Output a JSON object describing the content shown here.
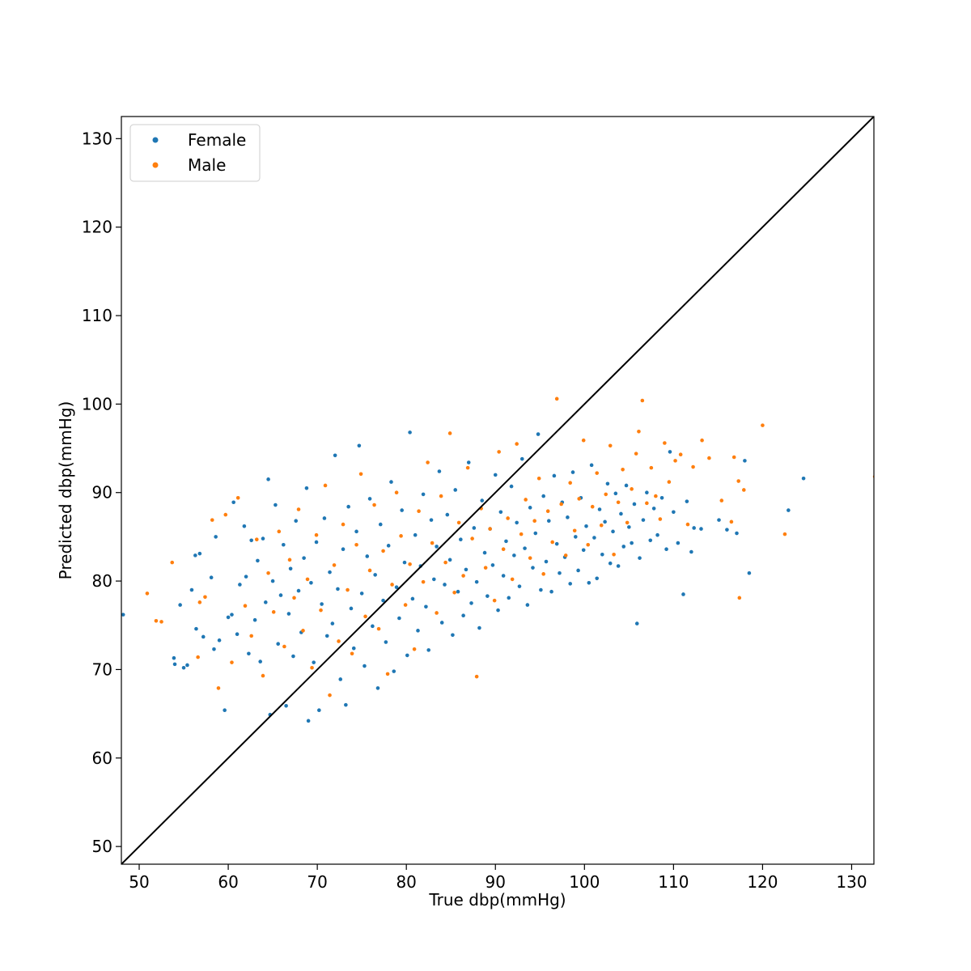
{
  "chart_data": {
    "type": "scatter",
    "title": "",
    "xlabel": "True dbp(mmHg)",
    "ylabel": "Predicted dbp(mmHg)",
    "xlim": [
      48,
      132.5
    ],
    "ylim": [
      48,
      132.5
    ],
    "xticks": [
      50,
      60,
      70,
      80,
      90,
      100,
      110,
      120,
      130
    ],
    "yticks": [
      50,
      60,
      70,
      80,
      90,
      100,
      110,
      120,
      130
    ],
    "grid": false,
    "legend_position": "top-left",
    "reference_line": {
      "type": "identity",
      "color": "#000000"
    },
    "series": [
      {
        "name": "Female",
        "color": "#1f77b4",
        "points": [
          [
            48.2,
            76.2
          ],
          [
            53.9,
            71.3
          ],
          [
            54.0,
            70.6
          ],
          [
            54.6,
            77.3
          ],
          [
            55.0,
            70.2
          ],
          [
            55.4,
            70.5
          ],
          [
            55.9,
            79.0
          ],
          [
            56.3,
            82.9
          ],
          [
            56.4,
            74.6
          ],
          [
            56.8,
            83.1
          ],
          [
            57.2,
            73.7
          ],
          [
            58.1,
            80.4
          ],
          [
            58.4,
            72.3
          ],
          [
            58.6,
            85.0
          ],
          [
            59.0,
            73.3
          ],
          [
            59.6,
            65.4
          ],
          [
            60.0,
            75.9
          ],
          [
            60.4,
            76.2
          ],
          [
            60.6,
            88.9
          ],
          [
            61.0,
            74.0
          ],
          [
            61.3,
            79.6
          ],
          [
            61.8,
            86.2
          ],
          [
            62.0,
            80.5
          ],
          [
            62.3,
            71.8
          ],
          [
            62.6,
            84.6
          ],
          [
            63.0,
            75.6
          ],
          [
            63.3,
            82.3
          ],
          [
            63.6,
            70.9
          ],
          [
            63.9,
            84.8
          ],
          [
            64.2,
            77.6
          ],
          [
            64.5,
            91.5
          ],
          [
            64.7,
            64.9
          ],
          [
            65.0,
            80.0
          ],
          [
            65.3,
            88.6
          ],
          [
            65.6,
            72.9
          ],
          [
            65.9,
            78.4
          ],
          [
            66.2,
            84.1
          ],
          [
            66.5,
            65.9
          ],
          [
            66.8,
            76.3
          ],
          [
            67.0,
            81.4
          ],
          [
            67.3,
            71.5
          ],
          [
            67.6,
            86.8
          ],
          [
            67.9,
            78.9
          ],
          [
            68.2,
            74.2
          ],
          [
            68.5,
            82.6
          ],
          [
            68.8,
            90.5
          ],
          [
            69.0,
            64.2
          ],
          [
            69.3,
            79.8
          ],
          [
            69.6,
            70.8
          ],
          [
            69.9,
            84.4
          ],
          [
            70.2,
            65.4
          ],
          [
            70.5,
            77.4
          ],
          [
            70.8,
            87.1
          ],
          [
            71.1,
            73.8
          ],
          [
            71.4,
            81.0
          ],
          [
            71.7,
            75.2
          ],
          [
            72.0,
            94.2
          ],
          [
            72.3,
            79.1
          ],
          [
            72.6,
            68.9
          ],
          [
            72.9,
            83.6
          ],
          [
            73.2,
            66.0
          ],
          [
            73.5,
            88.4
          ],
          [
            73.8,
            76.9
          ],
          [
            74.1,
            72.4
          ],
          [
            74.4,
            85.6
          ],
          [
            74.7,
            95.3
          ],
          [
            75.0,
            78.6
          ],
          [
            75.3,
            70.4
          ],
          [
            75.6,
            82.8
          ],
          [
            75.9,
            89.3
          ],
          [
            76.2,
            74.9
          ],
          [
            76.5,
            80.7
          ],
          [
            76.8,
            67.9
          ],
          [
            77.1,
            86.4
          ],
          [
            77.4,
            77.8
          ],
          [
            77.7,
            73.1
          ],
          [
            78.0,
            84.0
          ],
          [
            78.3,
            91.2
          ],
          [
            78.6,
            69.8
          ],
          [
            78.9,
            79.3
          ],
          [
            79.2,
            75.8
          ],
          [
            79.5,
            88.0
          ],
          [
            79.8,
            82.1
          ],
          [
            80.1,
            71.6
          ],
          [
            80.4,
            96.8
          ],
          [
            80.7,
            78.0
          ],
          [
            81.0,
            85.2
          ],
          [
            81.3,
            74.4
          ],
          [
            81.6,
            81.7
          ],
          [
            81.9,
            89.8
          ],
          [
            82.2,
            77.1
          ],
          [
            82.5,
            72.2
          ],
          [
            82.8,
            86.9
          ],
          [
            83.1,
            80.2
          ],
          [
            83.4,
            83.9
          ],
          [
            83.7,
            92.4
          ],
          [
            84.0,
            75.3
          ],
          [
            84.3,
            79.6
          ],
          [
            84.6,
            87.5
          ],
          [
            84.9,
            82.4
          ],
          [
            85.2,
            73.9
          ],
          [
            85.5,
            90.3
          ],
          [
            85.8,
            78.8
          ],
          [
            86.1,
            84.7
          ],
          [
            86.4,
            76.1
          ],
          [
            86.7,
            81.3
          ],
          [
            87.0,
            93.4
          ],
          [
            87.3,
            77.5
          ],
          [
            87.6,
            86.0
          ],
          [
            87.9,
            79.9
          ],
          [
            88.2,
            74.7
          ],
          [
            88.5,
            89.1
          ],
          [
            88.8,
            83.2
          ],
          [
            89.1,
            78.3
          ],
          [
            89.4,
            85.9
          ],
          [
            89.7,
            81.8
          ],
          [
            90.0,
            92.0
          ],
          [
            90.3,
            76.7
          ],
          [
            90.6,
            87.8
          ],
          [
            90.9,
            80.6
          ],
          [
            91.2,
            84.5
          ],
          [
            91.5,
            78.1
          ],
          [
            91.8,
            90.7
          ],
          [
            92.1,
            82.9
          ],
          [
            92.4,
            86.6
          ],
          [
            92.7,
            79.4
          ],
          [
            93.0,
            93.8
          ],
          [
            93.3,
            83.7
          ],
          [
            93.6,
            77.3
          ],
          [
            93.9,
            88.3
          ],
          [
            94.2,
            81.5
          ],
          [
            94.5,
            85.4
          ],
          [
            94.8,
            96.6
          ],
          [
            95.1,
            79.0
          ],
          [
            95.4,
            89.6
          ],
          [
            95.7,
            82.2
          ],
          [
            96.0,
            86.8
          ],
          [
            96.3,
            78.8
          ],
          [
            96.6,
            91.9
          ],
          [
            96.9,
            84.2
          ],
          [
            97.2,
            80.9
          ],
          [
            97.5,
            88.9
          ],
          [
            97.8,
            82.7
          ],
          [
            98.1,
            87.2
          ],
          [
            98.4,
            79.7
          ],
          [
            98.7,
            92.3
          ],
          [
            99.0,
            85.0
          ],
          [
            99.3,
            81.2
          ],
          [
            99.6,
            89.4
          ],
          [
            99.9,
            83.5
          ],
          [
            100.2,
            86.2
          ],
          [
            100.5,
            79.8
          ],
          [
            100.8,
            93.1
          ],
          [
            101.1,
            84.9
          ],
          [
            101.4,
            80.3
          ],
          [
            101.7,
            88.1
          ],
          [
            102.0,
            83.0
          ],
          [
            102.3,
            86.7
          ],
          [
            102.6,
            91.0
          ],
          [
            102.9,
            82.0
          ],
          [
            103.2,
            85.6
          ],
          [
            103.5,
            89.9
          ],
          [
            103.8,
            81.7
          ],
          [
            104.1,
            87.6
          ],
          [
            104.4,
            83.9
          ],
          [
            104.7,
            90.8
          ],
          [
            105.0,
            86.1
          ],
          [
            105.3,
            84.3
          ],
          [
            105.6,
            88.7
          ],
          [
            105.9,
            75.2
          ],
          [
            106.2,
            82.6
          ],
          [
            106.6,
            86.9
          ],
          [
            107.0,
            90.0
          ],
          [
            107.4,
            84.6
          ],
          [
            107.8,
            88.2
          ],
          [
            108.2,
            85.2
          ],
          [
            108.7,
            89.4
          ],
          [
            109.2,
            83.6
          ],
          [
            109.6,
            94.6
          ],
          [
            110.0,
            87.8
          ],
          [
            110.5,
            84.3
          ],
          [
            111.1,
            78.5
          ],
          [
            111.5,
            89.0
          ],
          [
            112.0,
            83.3
          ],
          [
            112.3,
            86.0
          ],
          [
            113.1,
            85.9
          ],
          [
            115.1,
            86.9
          ],
          [
            116.0,
            85.8
          ],
          [
            117.1,
            85.4
          ],
          [
            118.0,
            93.6
          ],
          [
            118.5,
            80.9
          ],
          [
            122.9,
            88.0
          ],
          [
            124.6,
            91.6
          ]
        ]
      },
      {
        "name": "Male",
        "color": "#ff7f0e",
        "points": [
          [
            50.9,
            78.6
          ],
          [
            51.9,
            75.5
          ],
          [
            52.5,
            75.4
          ],
          [
            53.7,
            82.1
          ],
          [
            56.6,
            71.4
          ],
          [
            56.8,
            77.6
          ],
          [
            57.4,
            78.2
          ],
          [
            58.2,
            86.9
          ],
          [
            58.9,
            67.9
          ],
          [
            59.7,
            87.5
          ],
          [
            60.4,
            70.8
          ],
          [
            61.1,
            89.4
          ],
          [
            61.9,
            77.2
          ],
          [
            62.6,
            73.8
          ],
          [
            63.2,
            84.7
          ],
          [
            63.9,
            69.3
          ],
          [
            64.5,
            80.9
          ],
          [
            65.1,
            76.5
          ],
          [
            65.7,
            85.6
          ],
          [
            66.3,
            72.6
          ],
          [
            66.9,
            82.4
          ],
          [
            67.4,
            78.1
          ],
          [
            67.9,
            88.1
          ],
          [
            68.4,
            74.4
          ],
          [
            68.9,
            80.2
          ],
          [
            69.4,
            70.2
          ],
          [
            69.9,
            85.2
          ],
          [
            70.4,
            76.7
          ],
          [
            70.9,
            90.8
          ],
          [
            71.4,
            67.1
          ],
          [
            71.9,
            81.8
          ],
          [
            72.4,
            73.2
          ],
          [
            72.9,
            86.4
          ],
          [
            73.4,
            79.0
          ],
          [
            73.9,
            71.8
          ],
          [
            74.4,
            84.1
          ],
          [
            74.9,
            92.1
          ],
          [
            75.4,
            76.0
          ],
          [
            75.9,
            81.2
          ],
          [
            76.4,
            88.6
          ],
          [
            76.9,
            74.6
          ],
          [
            77.4,
            83.4
          ],
          [
            77.9,
            69.5
          ],
          [
            78.4,
            79.6
          ],
          [
            78.9,
            90.0
          ],
          [
            79.4,
            85.1
          ],
          [
            79.9,
            77.3
          ],
          [
            80.4,
            81.9
          ],
          [
            80.9,
            72.3
          ],
          [
            81.4,
            87.9
          ],
          [
            81.9,
            79.9
          ],
          [
            82.4,
            93.4
          ],
          [
            82.9,
            84.3
          ],
          [
            83.4,
            76.4
          ],
          [
            83.9,
            89.6
          ],
          [
            84.4,
            82.1
          ],
          [
            84.9,
            96.7
          ],
          [
            85.4,
            78.7
          ],
          [
            85.9,
            86.6
          ],
          [
            86.4,
            80.6
          ],
          [
            86.9,
            92.8
          ],
          [
            87.4,
            84.8
          ],
          [
            87.9,
            69.2
          ],
          [
            88.4,
            88.2
          ],
          [
            88.9,
            81.5
          ],
          [
            89.4,
            85.9
          ],
          [
            89.9,
            77.8
          ],
          [
            90.4,
            94.6
          ],
          [
            90.9,
            83.6
          ],
          [
            91.4,
            87.1
          ],
          [
            91.9,
            80.2
          ],
          [
            92.4,
            95.5
          ],
          [
            92.9,
            85.3
          ],
          [
            93.4,
            89.2
          ],
          [
            93.9,
            82.6
          ],
          [
            94.4,
            86.8
          ],
          [
            94.9,
            91.6
          ],
          [
            95.4,
            80.8
          ],
          [
            95.9,
            87.9
          ],
          [
            96.4,
            84.4
          ],
          [
            96.9,
            100.6
          ],
          [
            97.4,
            88.7
          ],
          [
            97.9,
            82.9
          ],
          [
            98.4,
            91.1
          ],
          [
            98.9,
            85.7
          ],
          [
            99.4,
            89.3
          ],
          [
            99.9,
            95.9
          ],
          [
            100.4,
            84.1
          ],
          [
            100.9,
            88.4
          ],
          [
            101.4,
            92.2
          ],
          [
            101.9,
            86.3
          ],
          [
            102.4,
            89.8
          ],
          [
            102.9,
            95.3
          ],
          [
            103.3,
            83.0
          ],
          [
            103.8,
            88.9
          ],
          [
            104.3,
            92.6
          ],
          [
            104.8,
            86.6
          ],
          [
            105.3,
            90.4
          ],
          [
            105.8,
            94.4
          ],
          [
            106.1,
            96.9
          ],
          [
            106.5,
            100.4
          ],
          [
            107.0,
            88.8
          ],
          [
            107.5,
            92.8
          ],
          [
            108.0,
            89.6
          ],
          [
            108.5,
            87.0
          ],
          [
            109.0,
            95.6
          ],
          [
            109.5,
            91.2
          ],
          [
            110.2,
            93.6
          ],
          [
            110.8,
            94.3
          ],
          [
            111.6,
            86.4
          ],
          [
            112.2,
            92.9
          ],
          [
            113.2,
            95.9
          ],
          [
            114.0,
            93.9
          ],
          [
            115.4,
            89.1
          ],
          [
            116.5,
            86.7
          ],
          [
            116.8,
            94.0
          ],
          [
            117.3,
            91.3
          ],
          [
            117.9,
            90.3
          ],
          [
            117.4,
            78.1
          ],
          [
            120.0,
            97.6
          ],
          [
            122.5,
            85.3
          ],
          [
            132.6,
            91.8
          ]
        ]
      }
    ]
  }
}
